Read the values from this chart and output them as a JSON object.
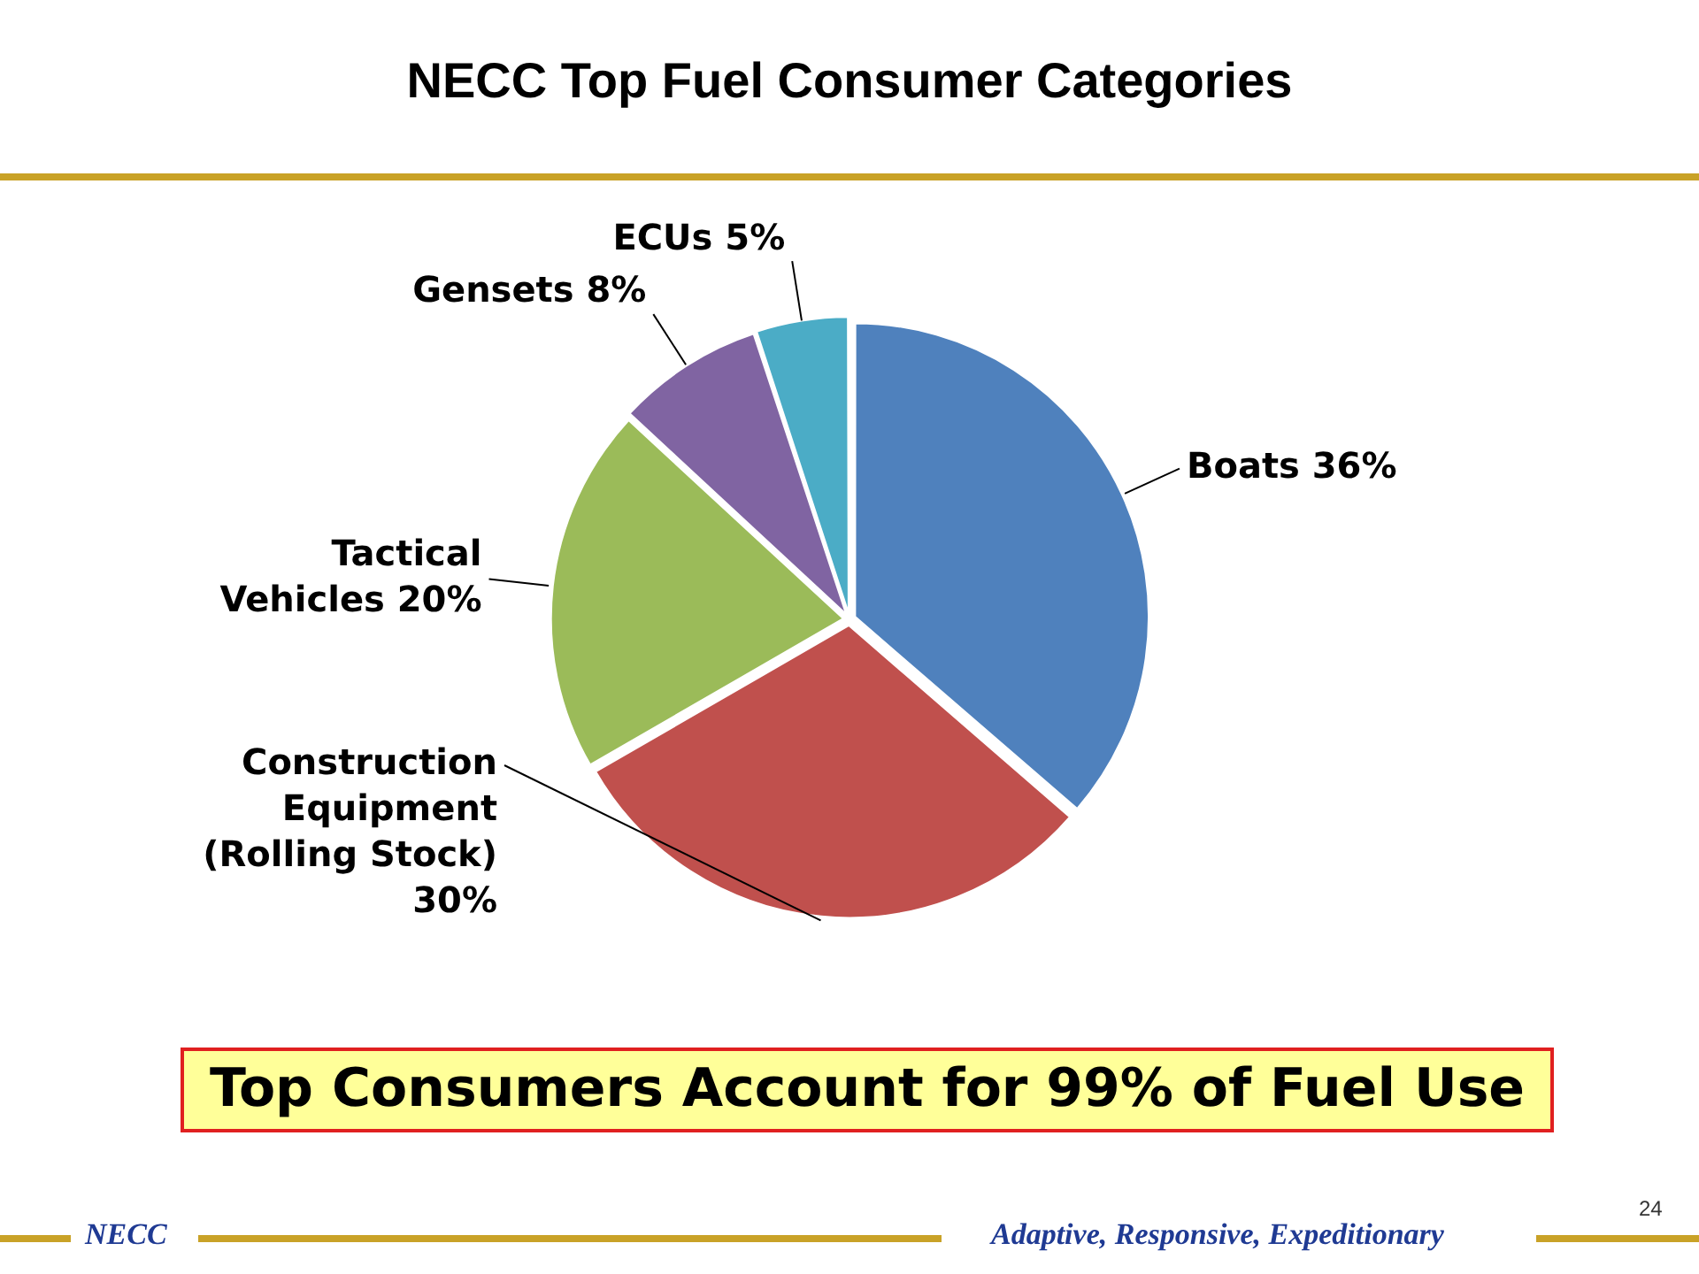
{
  "chart_data": {
    "type": "pie",
    "title": "NECC Top Fuel Consumer Categories",
    "categories": [
      "Boats",
      "Construction Equipment (Rolling Stock)",
      "Tactical Vehicles",
      "Gensets",
      "ECUs"
    ],
    "values": [
      36,
      30,
      20,
      8,
      5
    ],
    "value_labels": [
      "36%",
      "30%",
      "20%",
      "8%",
      "5%"
    ],
    "colors": [
      "#4f81bd",
      "#c0504d",
      "#9bbb59",
      "#8064a2",
      "#4bacc6"
    ],
    "legend": false,
    "annotations": [
      "Top Consumers Account for 99% of Fuel Use",
      "NECC",
      "Adaptive, Responsive, Expeditionary",
      "24"
    ]
  }
}
